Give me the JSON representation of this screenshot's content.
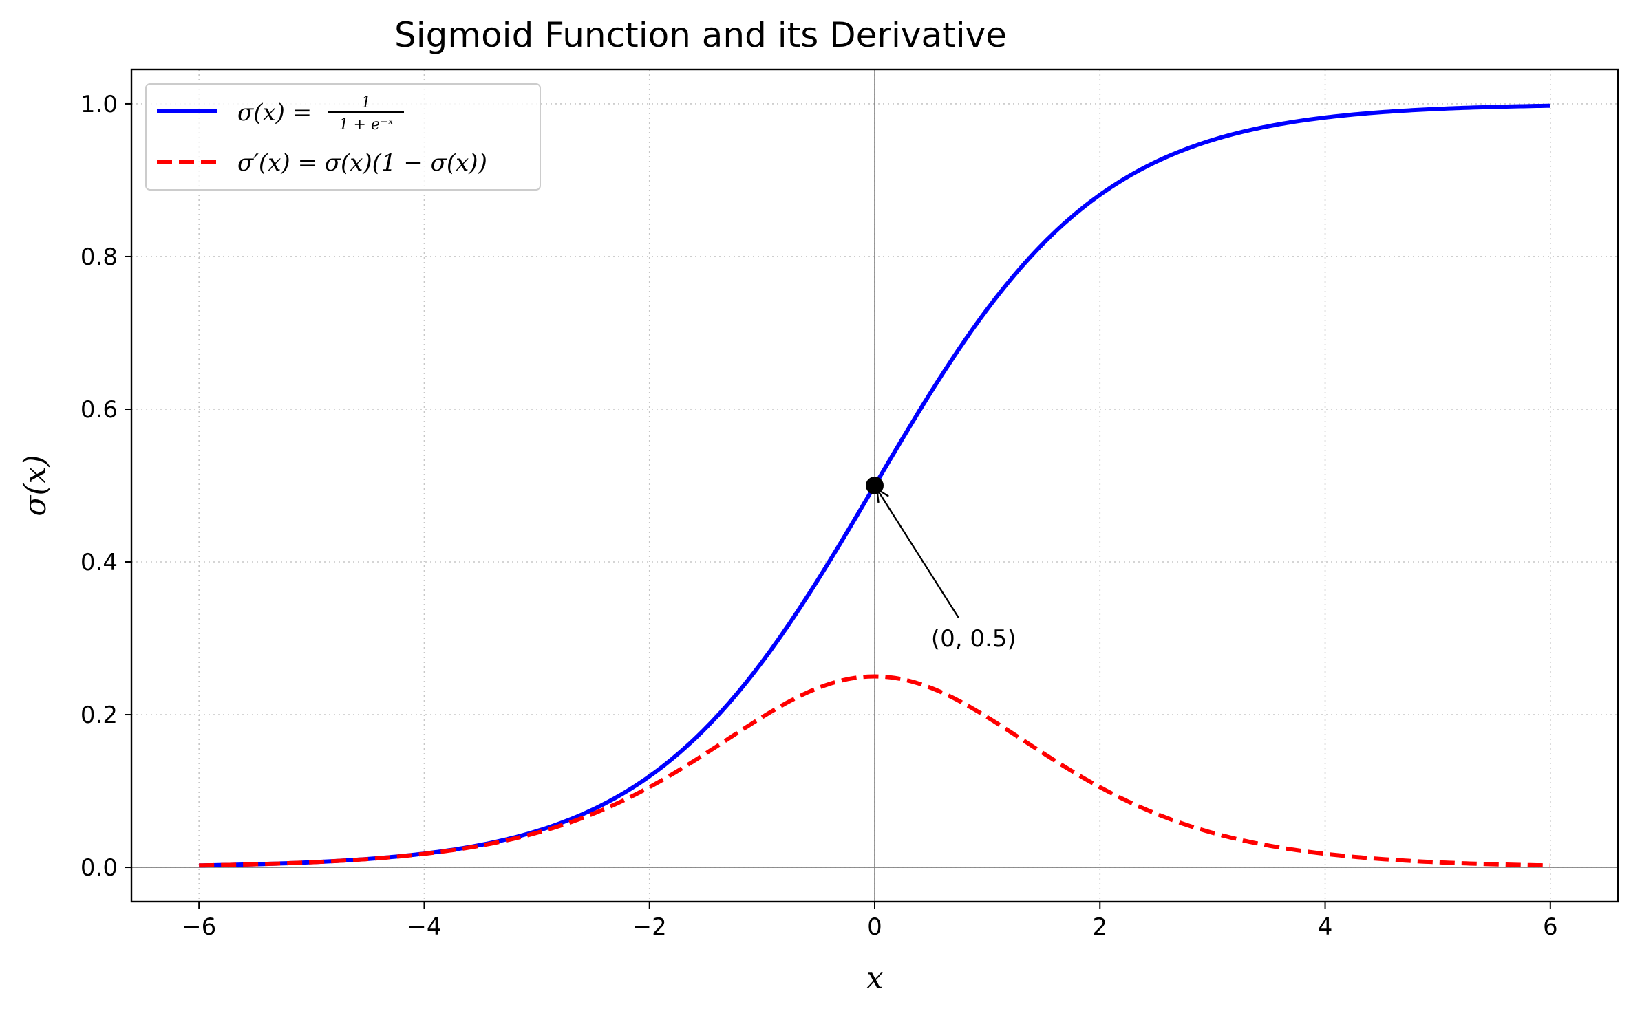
{
  "chart_data": {
    "type": "line",
    "title": "Sigmoid Function and its Derivative",
    "xlabel": "x",
    "ylabel": "σ(x)",
    "xlim": [
      -6.6,
      6.6
    ],
    "ylim": [
      -0.045,
      1.045
    ],
    "x_ticks": [
      -6,
      -4,
      -2,
      0,
      2,
      4,
      6
    ],
    "x_tick_labels": [
      "−6",
      "−4",
      "−2",
      "0",
      "2",
      "4",
      "6"
    ],
    "y_ticks": [
      0.0,
      0.2,
      0.4,
      0.6,
      0.8,
      1.0
    ],
    "y_tick_labels": [
      "0.0",
      "0.2",
      "0.4",
      "0.6",
      "0.8",
      "1.0"
    ],
    "grid": true,
    "legend_position": "top-left",
    "x_range": [
      -6,
      6
    ],
    "series": [
      {
        "name": "σ(x) = 1/(1 + e^−x)",
        "legend_main": "σ(x) = ",
        "legend_numerator": "1",
        "legend_denominator": "1 + e⁻ˣ",
        "function": "sigmoid",
        "color": "#0000ff",
        "style": "solid"
      },
      {
        "name": "σ′(x) = σ(x)(1 − σ(x))",
        "legend_main": "σ′(x) = σ(x)(1 − σ(x))",
        "function": "sigmoid_derivative",
        "color": "#ff0000",
        "style": "dashed"
      }
    ],
    "reference_lines": {
      "x": 0,
      "y": 0,
      "color": "#808080"
    },
    "marker_point": {
      "x": 0,
      "y": 0.5,
      "color": "#000000"
    },
    "annotation": {
      "text": "(0, 0.5)",
      "text_x": 0.5,
      "text_y": 0.3,
      "target_x": 0,
      "target_y": 0.5
    }
  }
}
